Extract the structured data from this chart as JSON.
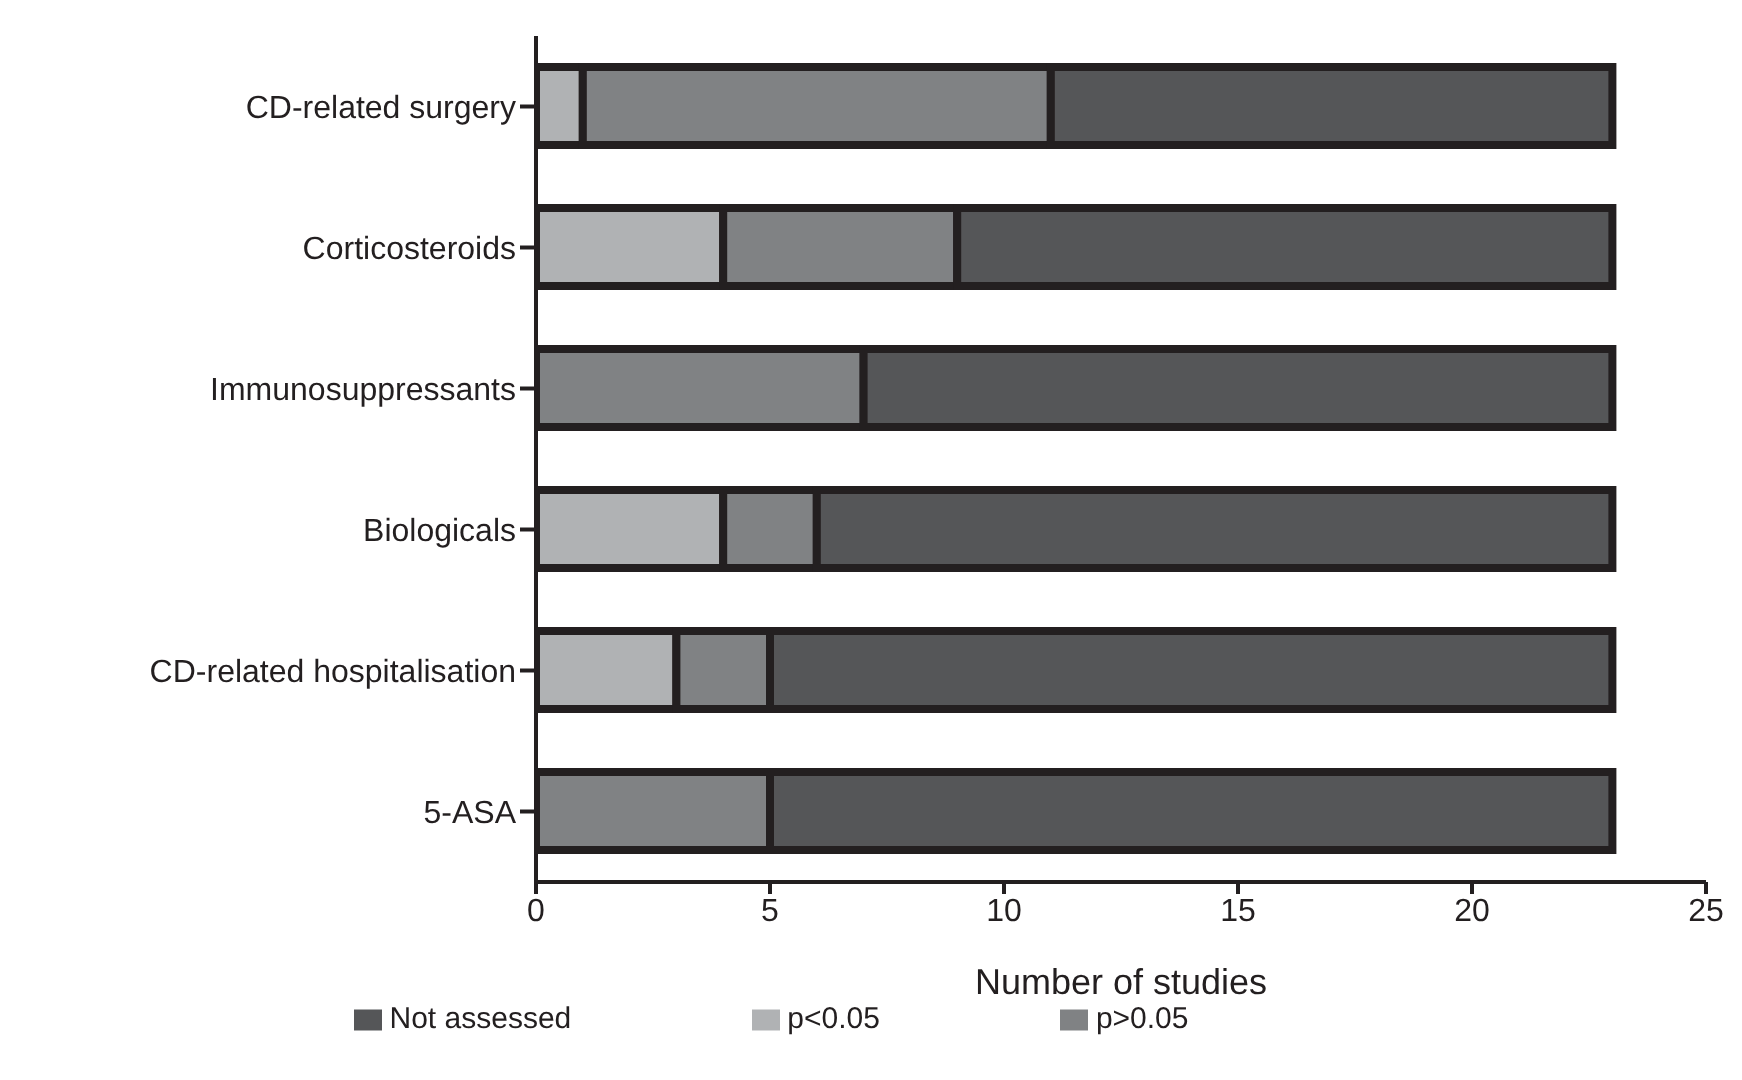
{
  "chart_data": {
    "type": "bar",
    "orientation": "horizontal",
    "stacked": true,
    "xlabel": "Number of studies",
    "categories": [
      "CD-related surgery",
      "Corticosteroids",
      "Immunosuppressants",
      "Biologicals",
      "CD-related hospitalisation",
      "5-ASA"
    ],
    "series": [
      {
        "name": "p<0.05",
        "color": "#b0b2b4",
        "values": [
          1,
          4,
          0,
          4,
          3,
          0
        ]
      },
      {
        "name": "p>0.05",
        "color": "#808284",
        "values": [
          10,
          5,
          7,
          2,
          2,
          5
        ]
      },
      {
        "name": "Not assessed",
        "color": "#555658",
        "values": [
          12,
          14,
          16,
          17,
          18,
          18
        ]
      }
    ],
    "xlim": [
      0,
      25
    ],
    "xticks": [
      0,
      5,
      10,
      15,
      20,
      25
    ],
    "grid": false,
    "legend": "bottom"
  }
}
